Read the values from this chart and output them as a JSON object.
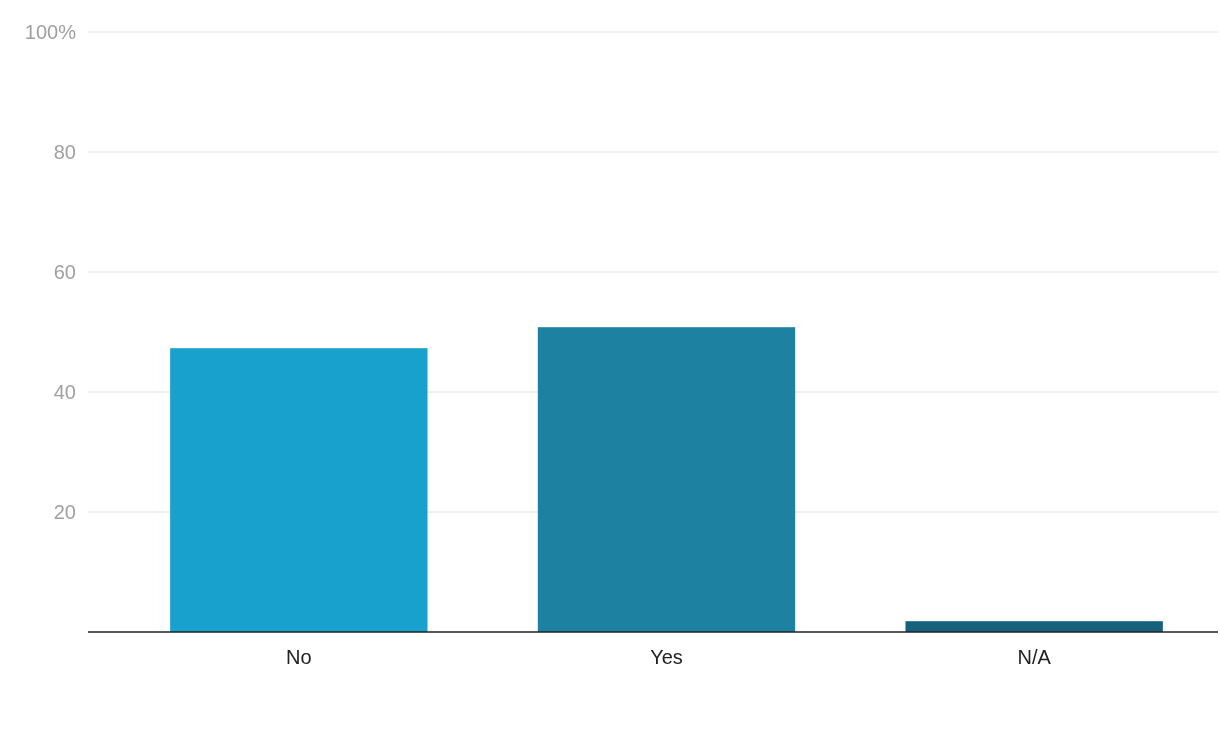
{
  "chart_data": {
    "type": "bar",
    "categories": [
      "No",
      "Yes",
      "N/A"
    ],
    "values": [
      47.3,
      50.8,
      1.8
    ],
    "colors": [
      "#18a1cd",
      "#1d81a2",
      "#15607a"
    ],
    "ylim": [
      0,
      100
    ],
    "yticks": [
      20,
      40,
      60,
      80,
      {
        "value": 100,
        "label": "100%"
      }
    ],
    "grid": "y"
  }
}
